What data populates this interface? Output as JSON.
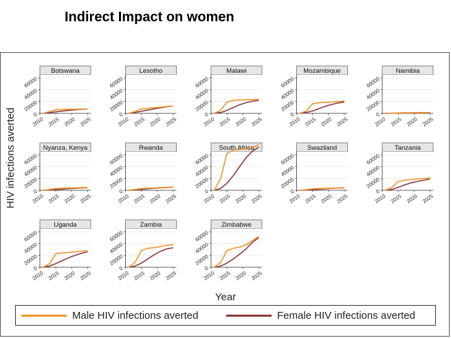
{
  "slide_title": "Indirect Impact on women",
  "chart_data": {
    "type": "line",
    "title": "",
    "ylabel": "HIV infections averted",
    "xlabel": "Year",
    "xlim": [
      2010,
      2026
    ],
    "ylim": [
      0,
      65000
    ],
    "x_ticks": [
      2010,
      2015,
      2020,
      2025
    ],
    "y_ticks": [
      0,
      20000,
      40000,
      60000
    ],
    "colors": {
      "male": "#f0922a",
      "female": "#8b3a3a"
    },
    "legend": {
      "male": "Male HIV infections averted",
      "female": "Female HIV infections averted",
      "position": "bottom"
    },
    "x": [
      2011,
      2013,
      2015,
      2017,
      2019,
      2021,
      2023,
      2025
    ],
    "panels": [
      {
        "name": "Botswana",
        "male": [
          0,
          3000,
          6000,
          6500,
          6800,
          7000,
          7200,
          7500
        ],
        "female": [
          0,
          1000,
          2500,
          3800,
          5000,
          6000,
          6800,
          7300
        ]
      },
      {
        "name": "Lesotho",
        "male": [
          0,
          3000,
          7500,
          8500,
          9500,
          10500,
          11500,
          12500
        ],
        "female": [
          0,
          1500,
          3500,
          5500,
          7500,
          9500,
          11000,
          12500
        ]
      },
      {
        "name": "Malawi",
        "male": [
          0,
          5000,
          19000,
          22000,
          22500,
          23000,
          23500,
          24000
        ],
        "female": [
          0,
          1500,
          5000,
          10000,
          14500,
          18000,
          20500,
          22000
        ]
      },
      {
        "name": "Mozambique",
        "male": [
          0,
          4000,
          16000,
          18000,
          18500,
          19000,
          20000,
          21000
        ],
        "female": [
          0,
          1500,
          4000,
          8000,
          12000,
          15000,
          17500,
          19000
        ]
      },
      {
        "name": "Namibia",
        "male": [
          0,
          400,
          800,
          1000,
          1100,
          1200,
          1300,
          1400
        ],
        "female": [
          0,
          200,
          400,
          600,
          800,
          1000,
          1100,
          1200
        ]
      },
      {
        "name": "Nyanza, Kenya",
        "male": [
          0,
          1500,
          3000,
          3500,
          4000,
          4200,
          4500,
          4800
        ],
        "female": [
          0,
          500,
          1200,
          2000,
          2800,
          3400,
          4000,
          4300
        ]
      },
      {
        "name": "Rwanda",
        "male": [
          0,
          1500,
          3000,
          3500,
          4000,
          4500,
          5000,
          5500
        ],
        "female": [
          0,
          500,
          1500,
          2500,
          3500,
          4200,
          4800,
          5200
        ]
      },
      {
        "name": "South Africa",
        "male": [
          0,
          20000,
          62000,
          68000,
          69000,
          70000,
          72000,
          77000
        ],
        "female": [
          0,
          3000,
          12000,
          25000,
          40000,
          55000,
          66000,
          73000
        ]
      },
      {
        "name": "Swaziland",
        "male": [
          0,
          1000,
          2500,
          3000,
          3300,
          3600,
          4000,
          4300
        ],
        "female": [
          0,
          400,
          1000,
          1800,
          2500,
          3200,
          3800,
          4200
        ]
      },
      {
        "name": "Tanzania",
        "male": [
          0,
          5000,
          15000,
          17000,
          18000,
          19000,
          20000,
          21000
        ],
        "female": [
          0,
          1500,
          5000,
          9000,
          12500,
          15000,
          17000,
          19000
        ]
      },
      {
        "name": "Uganda",
        "male": [
          0,
          6000,
          23000,
          24000,
          25000,
          26000,
          27000,
          28000
        ],
        "female": [
          0,
          2000,
          6000,
          11000,
          16000,
          20000,
          23500,
          26000
        ]
      },
      {
        "name": "Zambia",
        "male": [
          0,
          8000,
          28000,
          32000,
          33000,
          35000,
          37000,
          38000
        ],
        "female": [
          0,
          2000,
          7000,
          14000,
          21000,
          27000,
          31000,
          33000
        ]
      },
      {
        "name": "Zimbabwe",
        "male": [
          0,
          8000,
          28000,
          32000,
          34000,
          38000,
          45000,
          52000
        ],
        "female": [
          0,
          2000,
          7000,
          14000,
          22000,
          31000,
          42000,
          50000
        ]
      }
    ]
  }
}
